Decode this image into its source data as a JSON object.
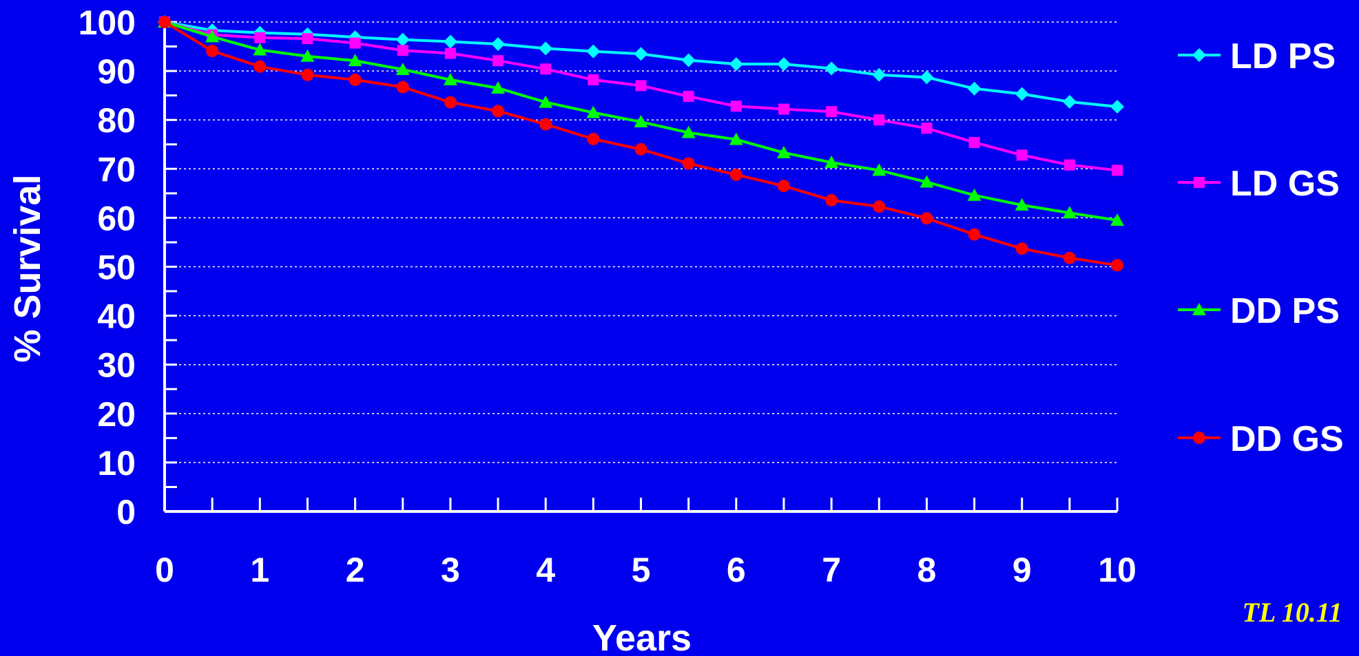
{
  "chart_data": {
    "type": "line",
    "title": "",
    "xlabel": "Years",
    "ylabel": "% Survival",
    "xlim": [
      0,
      10
    ],
    "ylim": [
      0,
      100
    ],
    "x_ticks": [
      "0",
      "1",
      "2",
      "3",
      "4",
      "5",
      "6",
      "7",
      "8",
      "9",
      "10"
    ],
    "y_ticks": [
      "0",
      "10",
      "20",
      "30",
      "40",
      "50",
      "60",
      "70",
      "80",
      "90",
      "100"
    ],
    "grid": true,
    "legend_position": "right",
    "background_color": "#0000ee",
    "x": [
      0,
      0.5,
      1,
      1.5,
      2,
      2.5,
      3,
      3.5,
      4,
      4.5,
      5,
      5.5,
      6,
      6.5,
      7,
      7.5,
      8,
      8.5,
      9,
      9.5,
      10
    ],
    "series": [
      {
        "name": "LD PS",
        "color": "#00ffff",
        "marker": "diamond",
        "values": [
          100,
          98.3,
          97.8,
          97.5,
          96.9,
          96.4,
          96.0,
          95.5,
          94.6,
          94.0,
          93.5,
          92.2,
          91.4,
          91.4,
          90.5,
          89.2,
          88.7,
          86.4,
          85.3,
          83.7,
          82.7
        ]
      },
      {
        "name": "LD GS",
        "color": "#ff00ff",
        "marker": "square",
        "values": [
          100,
          97.4,
          96.8,
          96.6,
          95.7,
          94.2,
          93.6,
          92.1,
          90.4,
          88.2,
          87.0,
          84.8,
          82.8,
          82.2,
          81.7,
          80.0,
          78.3,
          75.4,
          72.8,
          70.8,
          69.7
        ]
      },
      {
        "name": "DD PS",
        "color": "#00ff00",
        "marker": "triangle",
        "values": [
          100,
          97.0,
          94.3,
          93.0,
          92.1,
          90.3,
          88.2,
          86.5,
          83.6,
          81.5,
          79.6,
          77.4,
          76.0,
          73.3,
          71.3,
          69.7,
          67.3,
          64.6,
          62.6,
          61.0,
          59.5
        ]
      },
      {
        "name": "DD GS",
        "color": "#ff0000",
        "marker": "circle",
        "values": [
          100,
          94.1,
          90.9,
          89.2,
          88.2,
          86.7,
          83.6,
          81.8,
          79.1,
          76.1,
          74.0,
          71.1,
          68.8,
          66.5,
          63.6,
          62.3,
          59.9,
          56.6,
          53.7,
          51.8,
          50.3
        ]
      }
    ]
  },
  "footnote": "TL 10.11"
}
